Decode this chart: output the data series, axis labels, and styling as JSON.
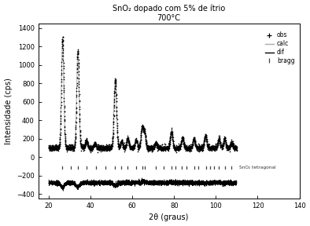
{
  "title_line1": "SnO₂ dopado com 5% de ítrio",
  "title_line2": "700°C",
  "xlabel": "2θ (graus)",
  "ylabel": "Intensidade (cps)",
  "xlim": [
    15,
    140
  ],
  "ylim": [
    -450,
    1450
  ],
  "yticks": [
    -400,
    -200,
    0,
    200,
    400,
    600,
    800,
    1000,
    1200,
    1400
  ],
  "xticks": [
    20,
    40,
    60,
    80,
    100,
    120,
    140
  ],
  "bg_color": "#f0f0f0",
  "obs_color": "#000000",
  "calc_color": "#aaaaaa",
  "dif_color": "#000000",
  "bragg_color": "#444444",
  "bragg_label": "SnO₂ tetragonal",
  "bragg_positions": [
    26.3,
    30.5,
    33.9,
    37.9,
    42.6,
    47.0,
    51.8,
    54.8,
    57.8,
    61.9,
    64.7,
    65.9,
    71.3,
    75.0,
    78.7,
    80.7,
    83.5,
    86.0,
    89.5,
    91.5,
    95.2,
    97.3,
    99.1,
    101.5,
    104.2,
    107.5
  ]
}
